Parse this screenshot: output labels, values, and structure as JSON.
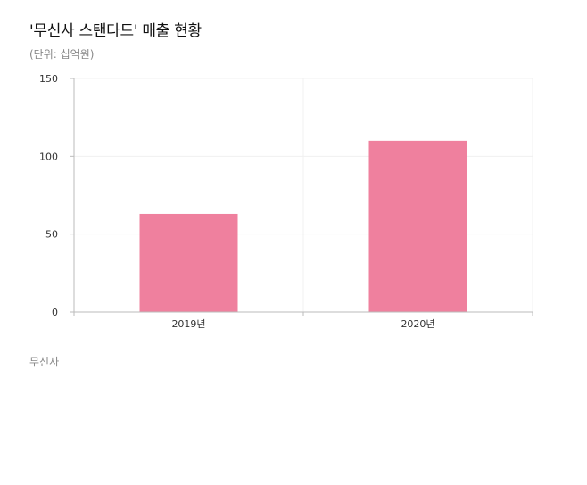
{
  "header": {
    "title": "'무신사 스탠다드' 매출 현황",
    "subtitle": "(단위: 십억원)"
  },
  "footer": {
    "source": "무신사"
  },
  "colors": {
    "bar": "#ef809e",
    "grid": "#f0f0f0",
    "axis": "#bbbbbb"
  },
  "chart_data": {
    "type": "bar",
    "categories": [
      "2019년",
      "2020년"
    ],
    "values": [
      63,
      110
    ],
    "ylim": [
      0,
      150
    ],
    "yticks": [
      0,
      50,
      100,
      150
    ],
    "grid": true
  }
}
